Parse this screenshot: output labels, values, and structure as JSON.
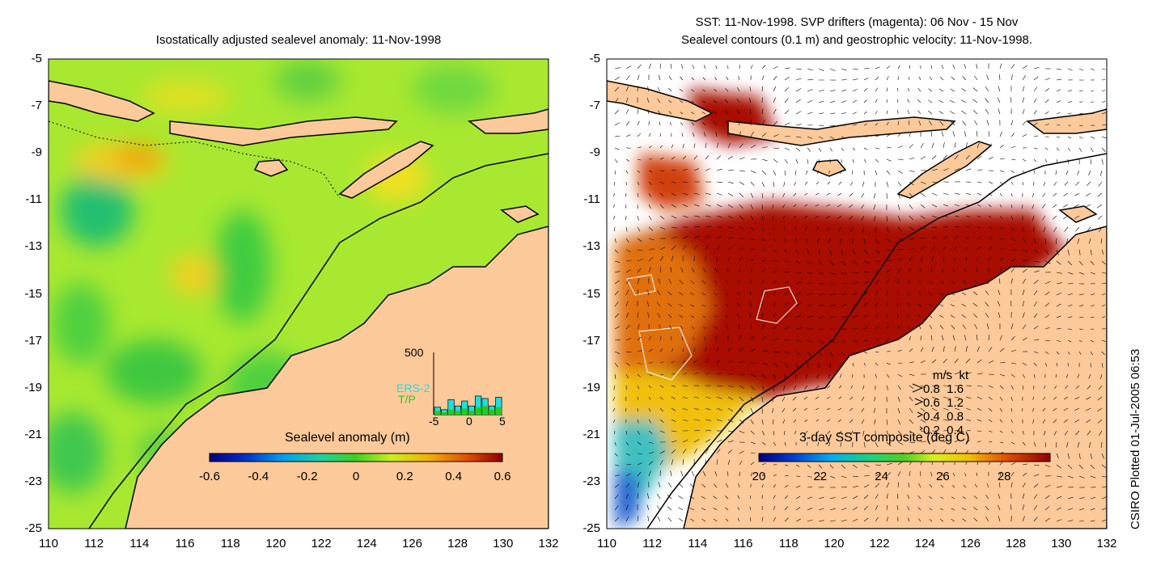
{
  "left_panel": {
    "title": "Isostatically adjusted sealevel anomaly: 11-Nov-1998",
    "colorbar": {
      "label": "Sealevel anomaly (m)",
      "ticks": [
        "-0.6",
        "-0.4",
        "-0.2",
        "0",
        "0.2",
        "0.4",
        "0.6"
      ],
      "range": [
        -0.6,
        0.6
      ]
    },
    "inset": {
      "ymax_label": "500",
      "series": [
        "ERS-2",
        "T/P"
      ],
      "series_colors": [
        "#22dddd",
        "#22cc22"
      ],
      "x_ticks": [
        "-5",
        "0",
        "5"
      ],
      "ers2_values": [
        60,
        40,
        120,
        70,
        110,
        70,
        150,
        130,
        70,
        140
      ],
      "tp_values": [
        30,
        20,
        40,
        30,
        50,
        30,
        60,
        70,
        40,
        60
      ]
    }
  },
  "right_panel": {
    "title_line1": "SST: 11-Nov-1998. SVP drifters (magenta): 06 Nov - 15 Nov",
    "title_line2": "Sealevel contours (0.1 m) and geostrophic velocity: 11-Nov-1998.",
    "colorbar": {
      "label": "3-day SST composite (deg C)",
      "ticks": [
        "20",
        "22",
        "24",
        "26",
        "28"
      ],
      "range": [
        20,
        29.5
      ]
    },
    "velocity_legend": {
      "header": "m/s  kt",
      "rows": [
        "0.8  1.6",
        "0.6  1.2",
        "0.4  0.8",
        "0.2  0.4"
      ]
    }
  },
  "axes": {
    "y_ticks": [
      "-5",
      "-7",
      "-9",
      "-11",
      "-13",
      "-15",
      "-17",
      "-19",
      "-21",
      "-23",
      "-25"
    ],
    "x_ticks": [
      "110",
      "112",
      "114",
      "116",
      "118",
      "120",
      "122",
      "124",
      "126",
      "128",
      "130",
      "132"
    ],
    "lat_range": [
      -25,
      -5
    ],
    "lon_range": [
      110,
      132
    ]
  },
  "credit": "CSIRO Plotted 01-Jul-2005 06:53",
  "colors": {
    "land": "#fcc99a",
    "sla_base": "#a8e830",
    "sst_warm": "#a80a00",
    "coast": "#000000"
  }
}
